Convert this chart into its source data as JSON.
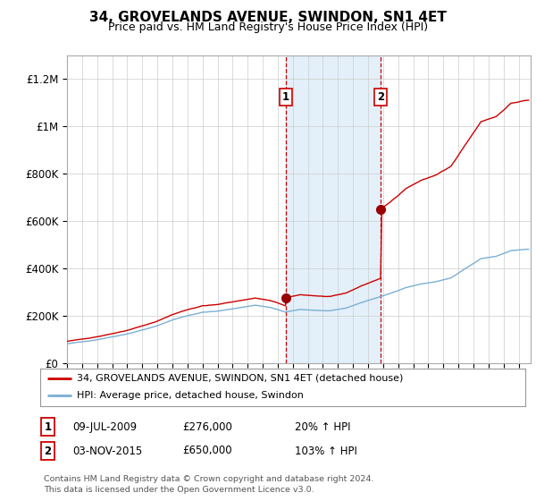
{
  "title": "34, GROVELANDS AVENUE, SWINDON, SN1 4ET",
  "subtitle": "Price paid vs. HM Land Registry's House Price Index (HPI)",
  "title_fontsize": 11,
  "subtitle_fontsize": 9,
  "ylabel_ticks": [
    "£0",
    "£200K",
    "£400K",
    "£600K",
    "£800K",
    "£1M",
    "£1.2M"
  ],
  "ytick_values": [
    0,
    200000,
    400000,
    600000,
    800000,
    1000000,
    1200000
  ],
  "ylim": [
    0,
    1300000
  ],
  "xlim_start": 1995.0,
  "xlim_end": 2025.8,
  "sale1_x": 2009.52,
  "sale1_y": 276000,
  "sale1_label": "1",
  "sale2_x": 2015.84,
  "sale2_y": 650000,
  "sale2_label": "2",
  "shade_color": "#cce4f5",
  "shade_alpha": 0.55,
  "vline_color": "#cc0000",
  "vline_style": "--",
  "red_line_color": "#cc0000",
  "blue_line_color": "#7bafd4",
  "marker_color": "#990000",
  "marker_size": 7,
  "legend1_label": "34, GROVELANDS AVENUE, SWINDON, SN1 4ET (detached house)",
  "legend2_label": "HPI: Average price, detached house, Swindon",
  "note1_label": "1",
  "note1_date": "09-JUL-2009",
  "note1_price": "£276,000",
  "note1_pct": "20% ↑ HPI",
  "note2_label": "2",
  "note2_date": "03-NOV-2015",
  "note2_price": "£650,000",
  "note2_pct": "103% ↑ HPI",
  "footer": "Contains HM Land Registry data © Crown copyright and database right 2024.\nThis data is licensed under the Open Government Licence v3.0.",
  "grid_color": "#cccccc",
  "bg_color": "#ffffff"
}
